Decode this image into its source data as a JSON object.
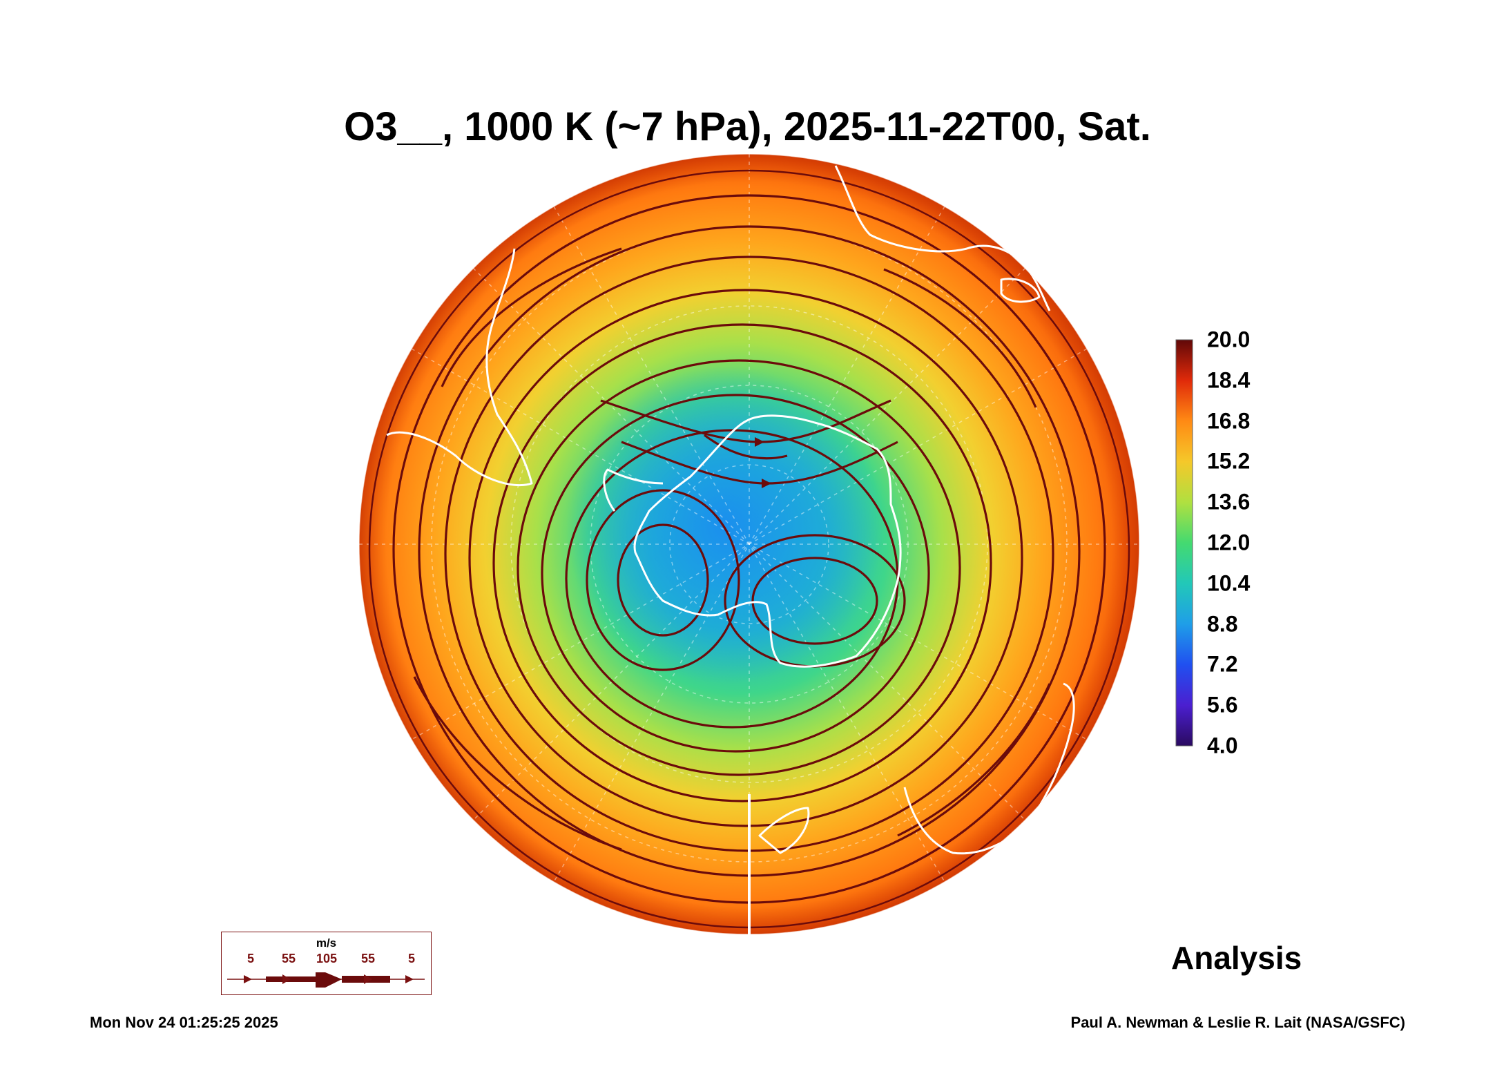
{
  "title": "O3__, 1000 K (~7 hPa), 2025-11-22T00, Sat.",
  "colorbar": {
    "labels": [
      "20.0",
      "18.4",
      "16.8",
      "15.2",
      "13.6",
      "12.0",
      "10.4",
      "8.8",
      "7.2",
      "5.6",
      "4.0"
    ],
    "min": 4.0,
    "max": 20.0
  },
  "wind_legend": {
    "unit": "m/s",
    "ticks": [
      "5",
      "55",
      "105",
      "55",
      "5"
    ]
  },
  "analysis_label": "Analysis",
  "timestamp": "Mon Nov 24 01:25:25 2025",
  "credit": "Paul A. Newman & Leslie R. Lait (NASA/GSFC)",
  "colors": {
    "streamline": "#6b0b0b",
    "coastline": "#ffffff",
    "low_ozone": "#1e90ff",
    "high_ozone": "#ff6a00"
  }
}
